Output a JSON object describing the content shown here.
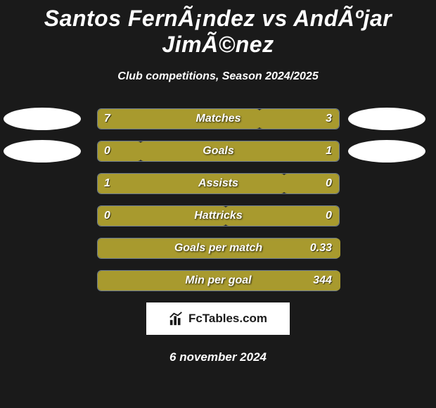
{
  "title": "Santos FernÃ¡ndez vs AndÃºjar JimÃ©nez",
  "subtitle": "Club competitions, Season 2024/2025",
  "date": "6 november 2024",
  "logo_text": "FcTables.com",
  "colors": {
    "left_fill": "#a89a2e",
    "right_fill": "#a89a2e",
    "ellipse_left_1": "#ffffff",
    "ellipse_right_1": "#ffffff",
    "ellipse_left_2": "#ffffff",
    "ellipse_right_2": "#ffffff",
    "bar_border": "#6b7a8f",
    "background": "#1a1a1a"
  },
  "stats": [
    {
      "label": "Matches",
      "left_val": "7",
      "right_val": "3",
      "left_pct": 67,
      "right_pct": 33,
      "show_ellipse": true
    },
    {
      "label": "Goals",
      "left_val": "0",
      "right_val": "1",
      "left_pct": 18,
      "right_pct": 82,
      "show_ellipse": true
    },
    {
      "label": "Assists",
      "left_val": "1",
      "right_val": "0",
      "left_pct": 77,
      "right_pct": 23,
      "show_ellipse": false
    },
    {
      "label": "Hattricks",
      "left_val": "0",
      "right_val": "0",
      "left_pct": 53,
      "right_pct": 47,
      "show_ellipse": false
    },
    {
      "label": "Goals per match",
      "left_val": "",
      "right_val": "0.33",
      "left_pct": 100,
      "right_pct": 0,
      "show_ellipse": false
    },
    {
      "label": "Min per goal",
      "left_val": "",
      "right_val": "344",
      "left_pct": 100,
      "right_pct": 0,
      "show_ellipse": false
    }
  ]
}
